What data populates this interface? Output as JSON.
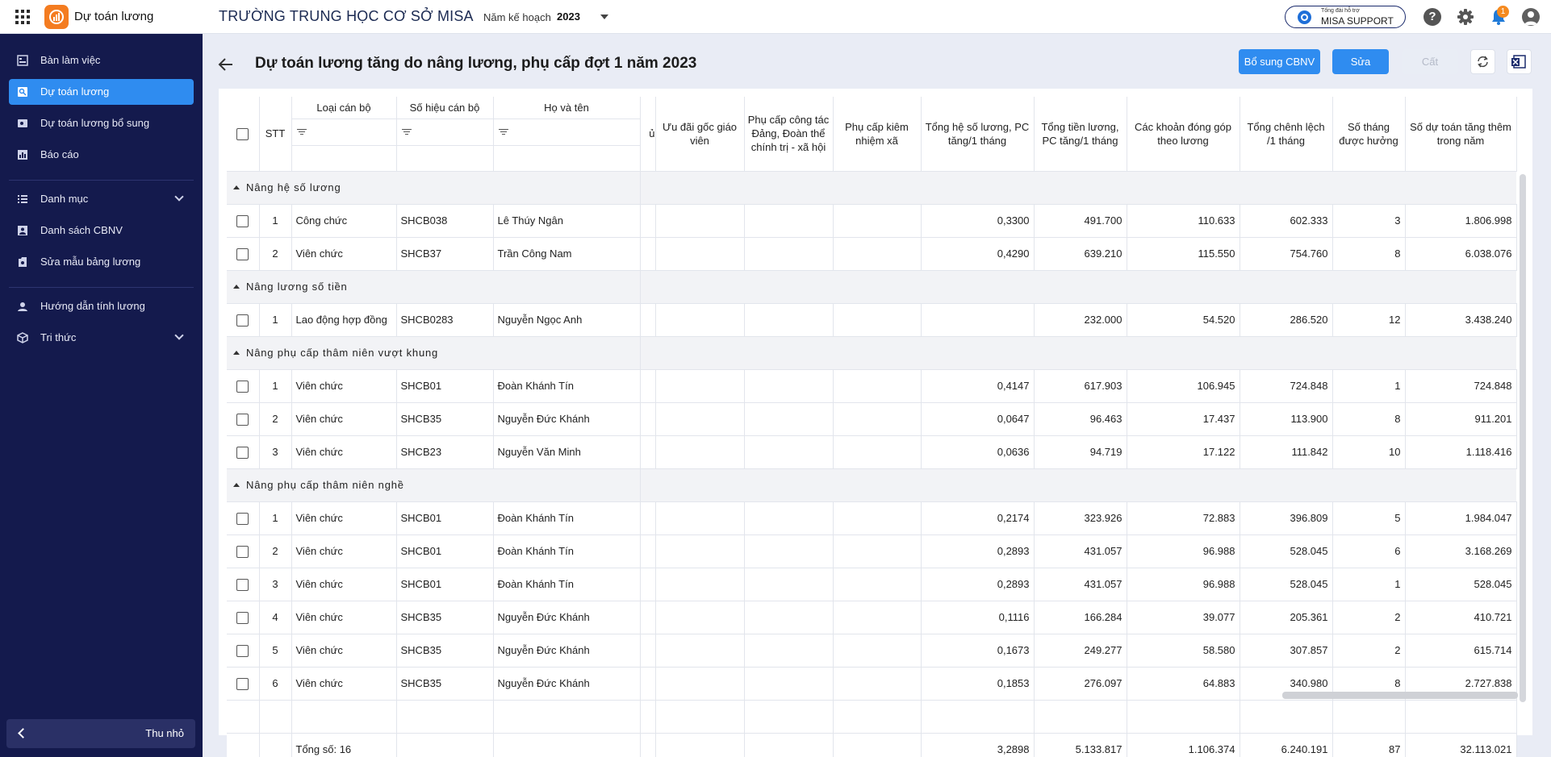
{
  "app": {
    "title": "Dự toán lương",
    "school_name": "TRƯỜNG TRUNG HỌC CƠ SỞ MISA",
    "plan_year_label": "Năm kế hoạch",
    "plan_year_value": "2023",
    "support_small": "Tổng đài hỗ trợ",
    "support_main": "MISA SUPPORT",
    "help_glyph": "?",
    "notification_count": "1",
    "icons": [
      "apps-grid-icon",
      "app-logo-icon",
      "chevron-down-icon",
      "support-phone-icon",
      "help-icon",
      "gear-icon",
      "bell-icon",
      "user-avatar-icon"
    ]
  },
  "sidebar": {
    "items": [
      {
        "label": "Bàn làm việc",
        "icon": "dashboard-icon"
      },
      {
        "label": "Dự toán lương",
        "icon": "estimate-icon",
        "active": true
      },
      {
        "label": "Dự toán lương bổ sung",
        "icon": "estimate-add-icon"
      },
      {
        "label": "Báo cáo",
        "icon": "report-icon"
      },
      {
        "label": "Danh mục",
        "icon": "list-icon",
        "expandable": true
      },
      {
        "label": "Danh sách CBNV",
        "icon": "staff-icon"
      },
      {
        "label": "Sửa mẫu bảng lương",
        "icon": "template-icon"
      },
      {
        "label": "Hướng dẫn tính lương",
        "icon": "guide-icon"
      },
      {
        "label": "Tri thức",
        "icon": "knowledge-icon",
        "expandable": true
      }
    ],
    "collapse_label": "Thu nhỏ"
  },
  "page": {
    "title": "Dự toán lương tăng do nâng lương, phụ cấp đợt 1 năm 2023",
    "buttons": {
      "add_staff": "Bổ sung CBNV",
      "edit": "Sửa",
      "save": "Cất"
    }
  },
  "table": {
    "headers": {
      "stt": "STT",
      "loai_can_bo": "Loại cán bộ",
      "so_hieu": "Số hiệu cán bộ",
      "ho_ten": "Họ và tên",
      "cut_col": "ủ",
      "uu_dai": "Ưu đãi gốc giáo viên",
      "pc_cong_tac": "Phụ cấp công tác Đảng, Đoàn thể chính trị - xã hội",
      "pc_kiem_nhiem": "Phụ cấp kiêm nhiệm xã",
      "tong_he_so": "Tổng hệ số lương, PC tăng/1 tháng",
      "tong_tien": "Tổng tiền lương, PC tăng/1 tháng",
      "dong_gop": "Các khoản đóng góp theo lương",
      "chenh_lech": "Tổng chênh lệch /1 tháng",
      "so_thang": "Số tháng được hưởng",
      "du_toan": "Số dự toán tăng thêm trong năm"
    },
    "groups": [
      {
        "name": "Nâng hệ số lương",
        "rows": [
          {
            "stt": "1",
            "loai": "Công chức",
            "so_hieu": "SHCB038",
            "ten": "Lê Thúy Ngân",
            "he_so": "0,3300",
            "tien": "491.700",
            "dong_gop": "110.633",
            "chenh_lech": "602.333",
            "so_thang": "3",
            "du_toan": "1.806.998"
          },
          {
            "stt": "2",
            "loai": "Viên chức",
            "so_hieu": "SHCB37",
            "ten": "Trần Công Nam",
            "he_so": "0,4290",
            "tien": "639.210",
            "dong_gop": "115.550",
            "chenh_lech": "754.760",
            "so_thang": "8",
            "du_toan": "6.038.076"
          }
        ]
      },
      {
        "name": "Nâng lương số tiền",
        "rows": [
          {
            "stt": "1",
            "loai": "Lao động hợp đồng",
            "so_hieu": "SHCB0283",
            "ten": "Nguyễn Ngọc Anh",
            "he_so": "",
            "tien": "232.000",
            "dong_gop": "54.520",
            "chenh_lech": "286.520",
            "so_thang": "12",
            "du_toan": "3.438.240"
          }
        ]
      },
      {
        "name": "Nâng phụ cấp thâm niên vượt khung",
        "rows": [
          {
            "stt": "1",
            "loai": "Viên chức",
            "so_hieu": "SHCB01",
            "ten": "Đoàn Khánh Tín",
            "he_so": "0,4147",
            "tien": "617.903",
            "dong_gop": "106.945",
            "chenh_lech": "724.848",
            "so_thang": "1",
            "du_toan": "724.848"
          },
          {
            "stt": "2",
            "loai": "Viên chức",
            "so_hieu": "SHCB35",
            "ten": "Nguyễn Đức Khánh",
            "he_so": "0,0647",
            "tien": "96.463",
            "dong_gop": "17.437",
            "chenh_lech": "113.900",
            "so_thang": "8",
            "du_toan": "911.201"
          },
          {
            "stt": "3",
            "loai": "Viên chức",
            "so_hieu": "SHCB23",
            "ten": "Nguyễn Văn Minh",
            "he_so": "0,0636",
            "tien": "94.719",
            "dong_gop": "17.122",
            "chenh_lech": "111.842",
            "so_thang": "10",
            "du_toan": "1.118.416"
          }
        ]
      },
      {
        "name": "Nâng phụ cấp thâm niên nghề",
        "rows": [
          {
            "stt": "1",
            "loai": "Viên chức",
            "so_hieu": "SHCB01",
            "ten": "Đoàn Khánh Tín",
            "he_so": "0,2174",
            "tien": "323.926",
            "dong_gop": "72.883",
            "chenh_lech": "396.809",
            "so_thang": "5",
            "du_toan": "1.984.047"
          },
          {
            "stt": "2",
            "loai": "Viên chức",
            "so_hieu": "SHCB01",
            "ten": "Đoàn Khánh Tín",
            "he_so": "0,2893",
            "tien": "431.057",
            "dong_gop": "96.988",
            "chenh_lech": "528.045",
            "so_thang": "6",
            "du_toan": "3.168.269"
          },
          {
            "stt": "3",
            "loai": "Viên chức",
            "so_hieu": "SHCB01",
            "ten": "Đoàn Khánh Tín",
            "he_so": "0,2893",
            "tien": "431.057",
            "dong_gop": "96.988",
            "chenh_lech": "528.045",
            "so_thang": "1",
            "du_toan": "528.045"
          },
          {
            "stt": "4",
            "loai": "Viên chức",
            "so_hieu": "SHCB35",
            "ten": "Nguyễn Đức Khánh",
            "he_so": "0,1116",
            "tien": "166.284",
            "dong_gop": "39.077",
            "chenh_lech": "205.361",
            "so_thang": "2",
            "du_toan": "410.721"
          },
          {
            "stt": "5",
            "loai": "Viên chức",
            "so_hieu": "SHCB35",
            "ten": "Nguyễn Đức Khánh",
            "he_so": "0,1673",
            "tien": "249.277",
            "dong_gop": "58.580",
            "chenh_lech": "307.857",
            "so_thang": "2",
            "du_toan": "615.714"
          },
          {
            "stt": "6",
            "loai": "Viên chức",
            "so_hieu": "SHCB35",
            "ten": "Nguyễn Đức Khánh",
            "he_so": "0,1853",
            "tien": "276.097",
            "dong_gop": "64.883",
            "chenh_lech": "340.980",
            "so_thang": "8",
            "du_toan": "2.727.838"
          }
        ]
      }
    ],
    "footer": {
      "label": "Tổng số: 16",
      "he_so": "3,2898",
      "tien": "5.133.817",
      "dong_gop": "1.106.374",
      "chenh_lech": "6.240.191",
      "so_thang": "87",
      "du_toan": "32.113.021"
    }
  },
  "colors": {
    "sidebar_bg": "#141a4d",
    "accent": "#2f8cf0",
    "logo": "#f47c20",
    "badge": "#f58a1f"
  }
}
